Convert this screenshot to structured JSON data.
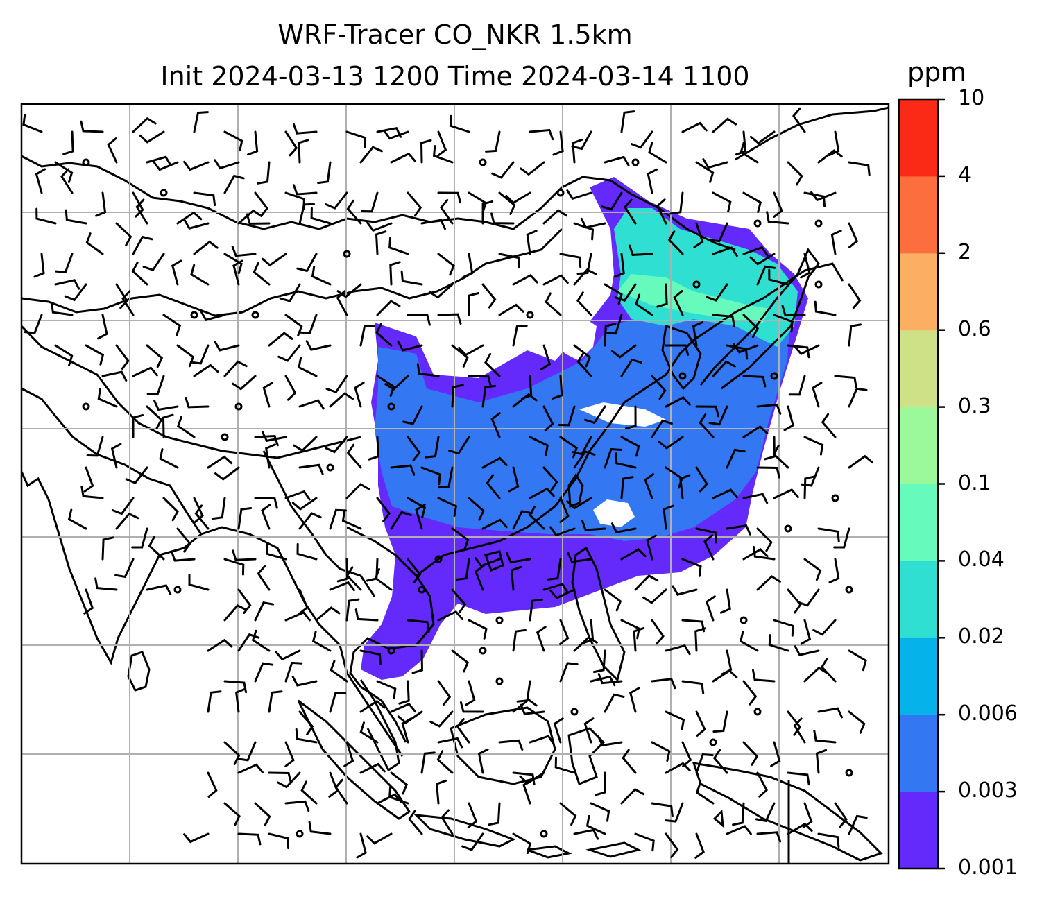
{
  "title": {
    "line1": "WRF-Tracer CO_NKR 1.5km",
    "line2": "Init 2024-03-13 1200 Time 2024-03-14 1100"
  },
  "colorbar": {
    "unit": "ppm",
    "levels": [
      "0.001",
      "0.003",
      "0.006",
      "0.02",
      "0.04",
      "0.1",
      "0.3",
      "0.6",
      "2",
      "4",
      "10"
    ],
    "colors": [
      "#6429fb",
      "#3377f2",
      "#05b3ea",
      "#2fdfd2",
      "#66fbbd",
      "#9cf99b",
      "#cfe186",
      "#fcae62",
      "#fd6e3e",
      "#fb2a17"
    ]
  },
  "map": {
    "grid": true,
    "field": "tracer concentration, ppm",
    "overlay": "wind barbs"
  }
}
